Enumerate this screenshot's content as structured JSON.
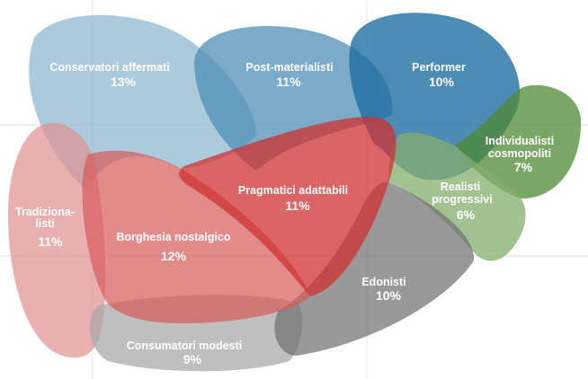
{
  "segments": [
    {
      "id": "conservatori",
      "label": "Conservatori affermati",
      "pct": "13%",
      "color": "#8fb9d1"
    },
    {
      "id": "postmat",
      "label": "Post-materialisti",
      "pct": "11%",
      "color": "#4f8fb6"
    },
    {
      "id": "performer",
      "label": "Performer",
      "pct": "10%",
      "color": "#1f6fa2"
    },
    {
      "id": "individualisti",
      "label_1": "Individualisti",
      "label_2": "cosmopoliti",
      "pct": "7%",
      "color": "#4f8a33"
    },
    {
      "id": "realisti",
      "label_1": "Realisti",
      "label_2": "progressivi",
      "pct": "6%",
      "color": "#84ad6d"
    },
    {
      "id": "edonisti",
      "label": "Edonisti",
      "pct": "10%",
      "color": "#6e6e6e"
    },
    {
      "id": "consumatori",
      "label": "Consumatori modesti",
      "pct": "9%",
      "color": "#a9a9a9"
    },
    {
      "id": "tradizionalisti",
      "label_1": "Tradiziona-",
      "label_2": "listi",
      "pct": "11%",
      "color": "#e08f8f"
    },
    {
      "id": "borghesia",
      "label": "Borghesia nostalgico",
      "pct": "12%",
      "color": "#d75a5a"
    },
    {
      "id": "pragmatici",
      "label": "Pragmatici adattabili",
      "pct": "11%",
      "color": "#cf3030"
    }
  ]
}
